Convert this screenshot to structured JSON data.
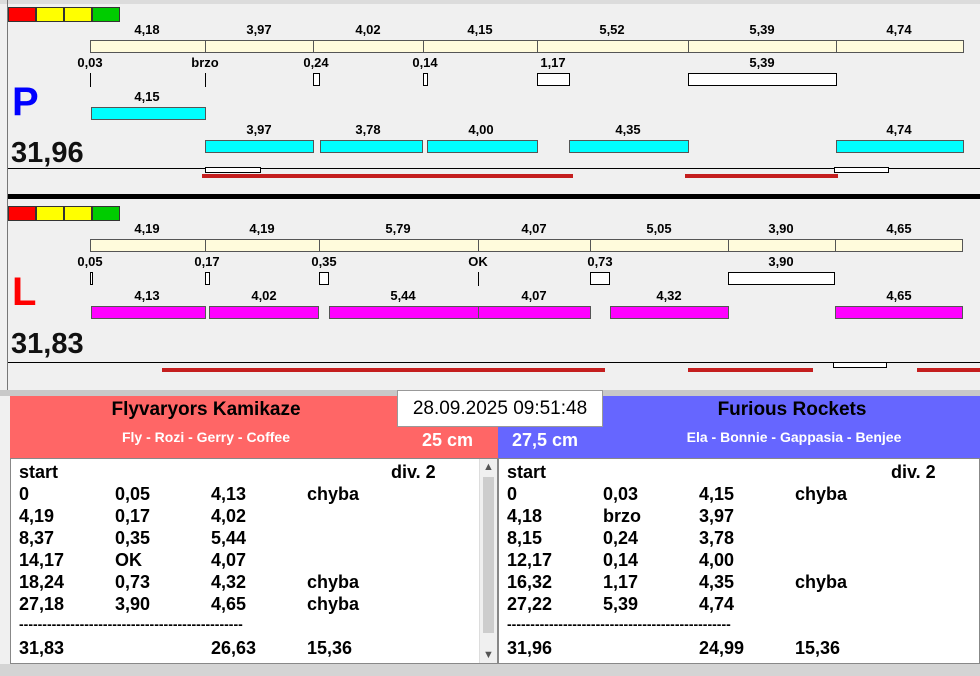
{
  "colors": {
    "signal": [
      "#ff0000",
      "#ffff00",
      "#ffff00",
      "#00cc00"
    ],
    "left_bg": "#ff6666",
    "right_bg": "#6666ff",
    "cyan": "#00ffff",
    "magenta": "#ff00ff",
    "cream": "#fffbdc",
    "red": "#c41e1e"
  },
  "lane_p": {
    "letter": "P",
    "letter_color": "#0000ff",
    "total": "31,96",
    "top_labels": [
      "4,18",
      "3,97",
      "4,02",
      "4,15",
      "5,52",
      "5,39",
      "4,74"
    ],
    "small_labels": [
      "0,03",
      "brzo",
      "0,24",
      "0,14",
      "1,17",
      "5,39"
    ],
    "run_labels": [
      "4,15",
      "3,97",
      "3,78",
      "4,00",
      "4,35",
      "4,74"
    ]
  },
  "lane_l": {
    "letter": "L",
    "letter_color": "#ff0000",
    "total": "31,83",
    "top_labels": [
      "4,19",
      "4,19",
      "5,79",
      "4,07",
      "5,05",
      "3,90",
      "4,65"
    ],
    "small_labels": [
      "0,05",
      "0,17",
      "0,35",
      "OK",
      "0,73",
      "3,90"
    ],
    "run_labels": [
      "4,13",
      "4,02",
      "5,44",
      "4,07",
      "4,32",
      "4,65"
    ]
  },
  "datetime": "28.09.2025 09:51:48",
  "left_team": {
    "name": "Flyvaryors Kamikaze",
    "members": "Fly - Rozi - Gerry - Coffee",
    "height": "25 cm"
  },
  "right_team": {
    "name": "Furious Rockets",
    "members": "Ela - Bonnie - Gappasia - Benjee",
    "height": "27,5 cm"
  },
  "left_table": {
    "header": [
      "start",
      "div.  2"
    ],
    "rows": [
      [
        "0",
        "0,05",
        "4,13",
        "chyba"
      ],
      [
        "4,19",
        "0,17",
        "4,02",
        ""
      ],
      [
        "8,37",
        "0,35",
        "5,44",
        ""
      ],
      [
        "14,17",
        "OK",
        "4,07",
        ""
      ],
      [
        "18,24",
        "0,73",
        "4,32",
        "chyba"
      ],
      [
        "27,18",
        "3,90",
        "4,65",
        "chyba"
      ]
    ],
    "separator": "------------------------------------------------",
    "totals": [
      "31,83",
      "",
      "26,63",
      "15,36"
    ]
  },
  "right_table": {
    "header": [
      "start",
      "div.  2"
    ],
    "rows": [
      [
        "0",
        "0,03",
        "4,15",
        "chyba"
      ],
      [
        "4,18",
        "brzo",
        "3,97",
        ""
      ],
      [
        "8,15",
        "0,24",
        "3,78",
        ""
      ],
      [
        "12,17",
        "0,14",
        "4,00",
        ""
      ],
      [
        "16,32",
        "1,17",
        "4,35",
        "chyba"
      ],
      [
        "27,22",
        "5,39",
        "4,74",
        ""
      ]
    ],
    "separator": "------------------------------------------------",
    "totals": [
      "31,96",
      "",
      "24,99",
      "15,36"
    ]
  }
}
